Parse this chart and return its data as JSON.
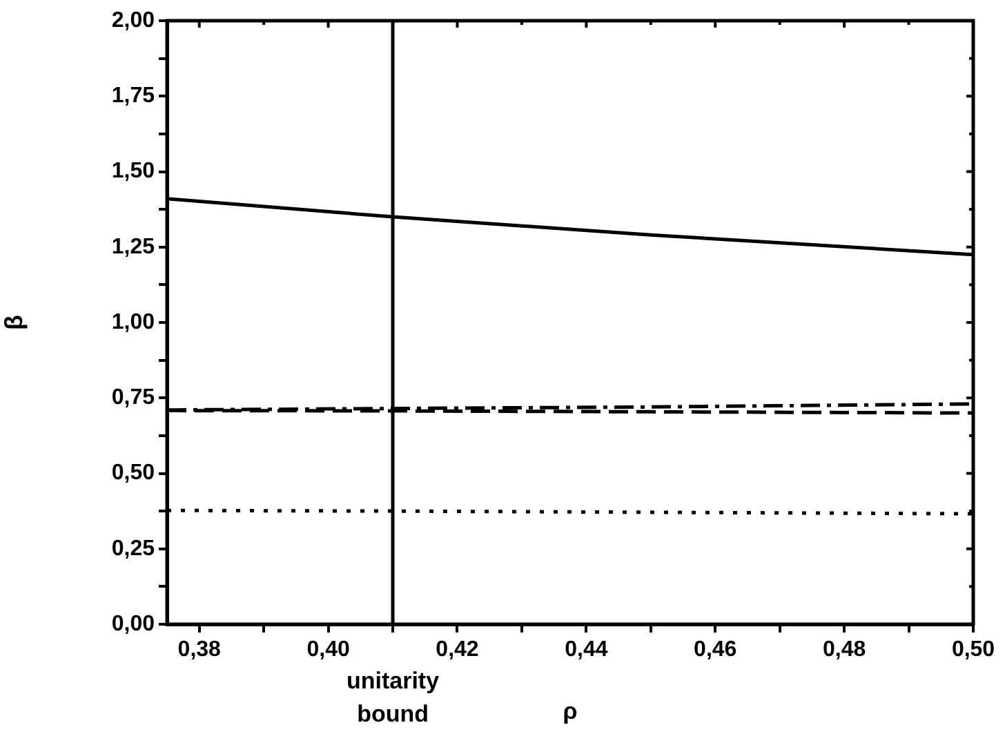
{
  "chart_data": {
    "type": "line",
    "xlabel": "ρ",
    "ylabel": "β",
    "xlim": [
      0.375,
      0.5
    ],
    "xticks": [
      {
        "value": 0.38,
        "label": "0,38"
      },
      {
        "value": 0.39,
        "label": null
      },
      {
        "value": 0.4,
        "label": "0,40"
      },
      {
        "value": 0.41,
        "label": null
      },
      {
        "value": 0.42,
        "label": "0,42"
      },
      {
        "value": 0.43,
        "label": null
      },
      {
        "value": 0.44,
        "label": "0,44"
      },
      {
        "value": 0.45,
        "label": null
      },
      {
        "value": 0.46,
        "label": "0,46"
      },
      {
        "value": 0.47,
        "label": null
      },
      {
        "value": 0.48,
        "label": "0,48"
      },
      {
        "value": 0.49,
        "label": null
      },
      {
        "value": 0.5,
        "label": "0,50"
      }
    ],
    "ylim": [
      0,
      2
    ],
    "yticks": [
      {
        "value": 0,
        "label": "0,00"
      },
      {
        "value": 0.125,
        "label": null
      },
      {
        "value": 0.25,
        "label": "0,25"
      },
      {
        "value": 0.375,
        "label": null
      },
      {
        "value": 0.5,
        "label": "0,50"
      },
      {
        "value": 0.625,
        "label": null
      },
      {
        "value": 0.75,
        "label": "0,75"
      },
      {
        "value": 0.875,
        "label": null
      },
      {
        "value": 1,
        "label": "1,00"
      },
      {
        "value": 1.125,
        "label": null
      },
      {
        "value": 1.25,
        "label": "1,25"
      },
      {
        "value": 1.375,
        "label": null
      },
      {
        "value": 1.5,
        "label": "1,50"
      },
      {
        "value": 1.625,
        "label": null
      },
      {
        "value": 1.75,
        "label": "1,75"
      },
      {
        "value": 1.875,
        "label": null
      },
      {
        "value": 2,
        "label": "2,00"
      }
    ],
    "grid": false,
    "legend": false,
    "marker": "none",
    "series": [
      {
        "color": "#000000",
        "line_style": "solid",
        "x": [
          0.375,
          0.41,
          0.45,
          0.5
        ],
        "values": [
          1.41,
          1.35,
          1.29,
          1.225
        ]
      },
      {
        "color": "#000000",
        "line_style": "dashdot",
        "x": [
          0.375,
          0.41,
          0.45,
          0.5
        ],
        "values": [
          0.71,
          0.715,
          0.72,
          0.73
        ]
      },
      {
        "color": "#000000",
        "line_style": "dashed",
        "x": [
          0.375,
          0.41,
          0.45,
          0.5
        ],
        "values": [
          0.708,
          0.707,
          0.704,
          0.7
        ]
      },
      {
        "color": "#000000",
        "line_style": "dotted",
        "x": [
          0.375,
          0.41,
          0.45,
          0.5
        ],
        "values": [
          0.377,
          0.375,
          0.371,
          0.366
        ]
      }
    ],
    "ref_lines": [
      {
        "axis": "x",
        "value": 0.41,
        "label": "unitarity bound",
        "color": "#000000",
        "line_style": "solid"
      }
    ]
  }
}
